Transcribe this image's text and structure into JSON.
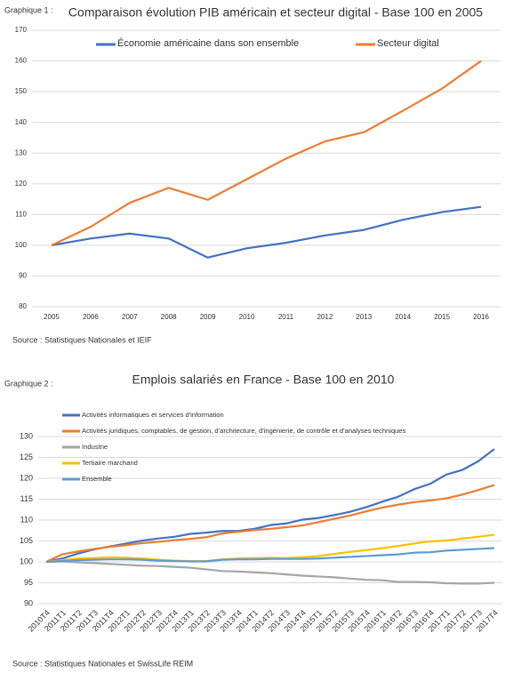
{
  "chart_data": [
    {
      "type": "line",
      "figure_label": "Graphique 1 :",
      "title": "Comparaison évolution PIB américain et secteur digital - Base 100 en 2005",
      "categories": [
        "2005",
        "2006",
        "2007",
        "2008",
        "2009",
        "2010",
        "2011",
        "2012",
        "2013",
        "2014",
        "2015",
        "2016"
      ],
      "series": [
        {
          "name": "Économie américaine dans son ensemble",
          "color": "#4472c4",
          "values": [
            100,
            102.2,
            103.8,
            102.2,
            96,
            99,
            100.8,
            103.2,
            105,
            108.3,
            110.8,
            112.5
          ]
        },
        {
          "name": "Secteur digital",
          "color": "#ed7d31",
          "values": [
            100,
            106,
            113.8,
            118.7,
            114.8,
            121.5,
            128.2,
            133.8,
            136.8,
            143.8,
            151,
            160
          ]
        }
      ],
      "ylim": [
        80,
        170
      ],
      "yticks": [
        80,
        90,
        100,
        110,
        120,
        130,
        140,
        150,
        160,
        170
      ],
      "grid": true,
      "legend": "top",
      "source": "Source : Statistiques Nationales et IEIF"
    },
    {
      "type": "line",
      "figure_label": "Graphique 2 :",
      "title": "Emplois salariés en France - Base 100 en 2010",
      "categories": [
        "2010T4",
        "2011T1",
        "2011T2",
        "2011T3",
        "2011T4",
        "2012T1",
        "2012T2",
        "2012T3",
        "2012T4",
        "2013T1",
        "2013T2",
        "2013T3",
        "2013T4",
        "2014T1",
        "2014T2",
        "2014T3",
        "2014T4",
        "2015T1",
        "2015T2",
        "2015T3",
        "2015T4",
        "2016T1",
        "2016T2",
        "2016T3",
        "2016T4",
        "2017T1",
        "2017T2",
        "2017T3",
        "2017T4"
      ],
      "series": [
        {
          "name": "Activités informatiques et services d'information",
          "color": "#4472c4",
          "values": [
            100,
            100.8,
            102,
            103,
            103.7,
            104.4,
            105.1,
            105.6,
            106,
            106.7,
            107,
            107.4,
            107.4,
            107.9,
            108.8,
            109.2,
            110.1,
            110.5,
            111.2,
            112,
            113.1,
            114.4,
            115.6,
            117.4,
            118.7,
            120.9,
            122,
            124.1,
            127
          ]
        },
        {
          "name": "Activités juridiques, comptables, de gestion, d'architecture, d'ingénierie, de contrôle et d'analyses techniques",
          "color": "#ed7d31",
          "values": [
            100,
            101.8,
            102.5,
            103.1,
            103.6,
            104,
            104.5,
            104.8,
            105.2,
            105.5,
            105.9,
            106.8,
            107.2,
            107.6,
            107.9,
            108.3,
            108.7,
            109.5,
            110.3,
            111.1,
            112.1,
            113,
            113.7,
            114.3,
            114.7,
            115.2,
            116.1,
            117.2,
            118.4
          ]
        },
        {
          "name": "Industrie",
          "color": "#a5a5a5",
          "values": [
            100,
            100.1,
            99.9,
            99.7,
            99.5,
            99.3,
            99.1,
            99,
            98.8,
            98.6,
            98.2,
            97.8,
            97.7,
            97.5,
            97.3,
            97,
            96.7,
            96.5,
            96.3,
            96,
            95.7,
            95.6,
            95.2,
            95.2,
            95.1,
            94.9,
            94.8,
            94.8,
            95
          ]
        },
        {
          "name": "Tertiaire marchand",
          "color": "#ffc000",
          "values": [
            100,
            100.4,
            100.8,
            100.9,
            101.1,
            101,
            100.8,
            100.5,
            100.3,
            100.2,
            100.2,
            100.6,
            100.8,
            100.9,
            101,
            100.9,
            101.1,
            101.4,
            101.9,
            102.4,
            102.8,
            103.3,
            103.8,
            104.4,
            104.9,
            105.1,
            105.6,
            106,
            106.5
          ]
        },
        {
          "name": "Ensemble",
          "color": "#5b9bd5",
          "values": [
            100,
            100.2,
            100.4,
            100.5,
            100.6,
            100.6,
            100.5,
            100.3,
            100.2,
            100.1,
            100.1,
            100.5,
            100.6,
            100.6,
            100.7,
            100.7,
            100.7,
            100.8,
            101,
            101.2,
            101.4,
            101.6,
            101.8,
            102.2,
            102.3,
            102.7,
            102.9,
            103.1,
            103.3
          ]
        }
      ],
      "ylim": [
        90,
        130
      ],
      "yticks": [
        90,
        95,
        100,
        105,
        110,
        115,
        120,
        125,
        130
      ],
      "grid": true,
      "legend": "upper left",
      "source": "Source : Statistiques Nationales et SwissLife REIM"
    }
  ]
}
